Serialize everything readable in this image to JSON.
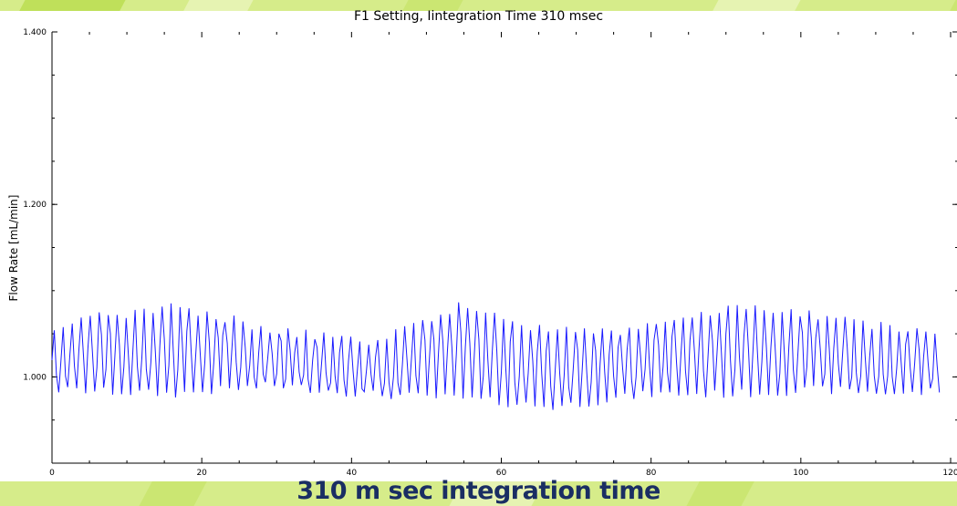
{
  "chart_data": {
    "type": "line",
    "title": "F1 Setting, Iintegration Time 310 msec",
    "xlabel": "",
    "ylabel": "Flow Rate [mL/min]",
    "xlim": [
      0,
      120
    ],
    "ylim": [
      0.9,
      1.4
    ],
    "xticks": [
      0,
      20,
      40,
      60,
      80,
      100,
      120
    ],
    "xtick_labels": [
      "0",
      "20",
      "40",
      "60",
      "80",
      "100",
      "120"
    ],
    "yticks": [
      1.0,
      1.2,
      1.4
    ],
    "ytick_labels": [
      "1.000",
      "1.200",
      "1.400"
    ],
    "grid": false,
    "series": [
      {
        "color": "#1a1aff",
        "approx_peak_range": [
          1.05,
          1.09
        ],
        "approx_trough_range": [
          0.96,
          0.99
        ],
        "oscillation_period": 1.2,
        "x_end": 118.7,
        "envelope_peaks": [
          [
            0,
            1.06
          ],
          [
            6,
            1.075
          ],
          [
            16,
            1.088
          ],
          [
            30,
            1.06
          ],
          [
            42,
            1.045
          ],
          [
            54,
            1.088
          ],
          [
            67,
            1.058
          ],
          [
            76,
            1.06
          ],
          [
            91,
            1.088
          ],
          [
            103,
            1.075
          ],
          [
            115,
            1.06
          ],
          [
            118.7,
            1.055
          ]
        ],
        "envelope_troughs": [
          [
            0,
            0.98
          ],
          [
            16,
            0.975
          ],
          [
            30,
            0.985
          ],
          [
            42,
            0.975
          ],
          [
            54,
            0.97
          ],
          [
            67,
            0.96
          ],
          [
            80,
            0.975
          ],
          [
            91,
            0.975
          ],
          [
            103,
            0.98
          ],
          [
            115,
            0.975
          ],
          [
            118.7,
            0.98
          ]
        ]
      }
    ]
  },
  "caption": "310 m sec integration time",
  "colors": {
    "background_green": "#d6ec8a",
    "panel": "#ffffff",
    "line": "#1a1aff",
    "caption": "#1a2e63"
  }
}
